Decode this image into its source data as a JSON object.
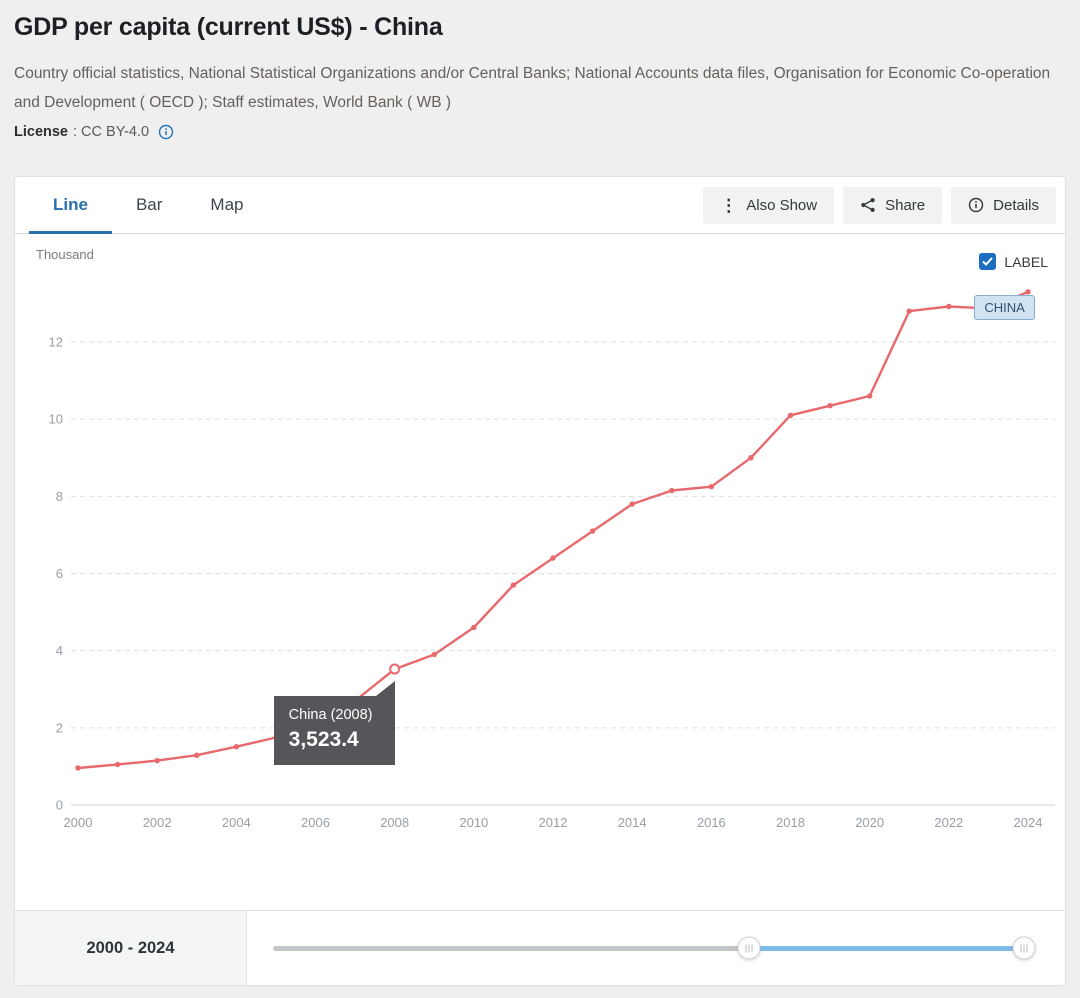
{
  "page": {
    "title": "GDP per capita (current US$) - China",
    "source": "Country official statistics, National Statistical Organizations and/or Central Banks; National Accounts data files, Organisation for Economic Co-operation and Development ( OECD ); Staff estimates, World Bank ( WB )",
    "license_label": "License",
    "license_value": ": CC BY-4.0"
  },
  "tabs": [
    {
      "label": "Line",
      "active": true
    },
    {
      "label": "Bar",
      "active": false
    },
    {
      "label": "Map",
      "active": false
    }
  ],
  "actions": {
    "also_show": "Also Show",
    "share": "Share",
    "details": "Details"
  },
  "chart_controls": {
    "label_checkbox": "LABEL",
    "label_checked": true
  },
  "range": {
    "label": "2000 - 2024",
    "handles_pct": [
      62.6,
      98.7
    ]
  },
  "colors": {
    "line": "#e8696d",
    "accent_blue": "#2a6fad",
    "checkbox_blue": "#1b6ec2",
    "tooltip_bg": "#54565a",
    "series_label_bg": "#cfe3f2",
    "slider_active": "#7dbbe8"
  },
  "chart_data": {
    "type": "line",
    "title": "GDP per capita (current US$) - China",
    "series_name": "CHINA",
    "unit": "Thousand",
    "xlabel": "",
    "ylabel": "Thousand",
    "grid": "horizontal-dashed",
    "legend_position": "end-of-line",
    "line_color": "#e8696d",
    "x": [
      2000,
      2001,
      2002,
      2003,
      2004,
      2005,
      2006,
      2007,
      2008,
      2009,
      2010,
      2011,
      2012,
      2013,
      2014,
      2015,
      2016,
      2017,
      2018,
      2019,
      2020,
      2021,
      2022,
      2023,
      2024
    ],
    "values": [
      0.96,
      1.05,
      1.15,
      1.29,
      1.51,
      1.75,
      2.1,
      2.7,
      3.5234,
      3.9,
      4.6,
      5.7,
      6.4,
      7.1,
      7.8,
      8.15,
      8.25,
      9.0,
      10.1,
      10.35,
      10.6,
      12.8,
      12.92,
      12.87,
      13.3
    ],
    "highlight": {
      "year": 2008,
      "label": "China (2008)",
      "value_display": "3,523.4"
    },
    "xticks": [
      2000,
      2002,
      2004,
      2006,
      2008,
      2010,
      2012,
      2014,
      2016,
      2018,
      2020,
      2022,
      2024
    ],
    "yticks": [
      0,
      2,
      4,
      6,
      8,
      10,
      12
    ],
    "ylim": [
      0,
      14
    ],
    "xlim": [
      2000,
      2024
    ]
  }
}
